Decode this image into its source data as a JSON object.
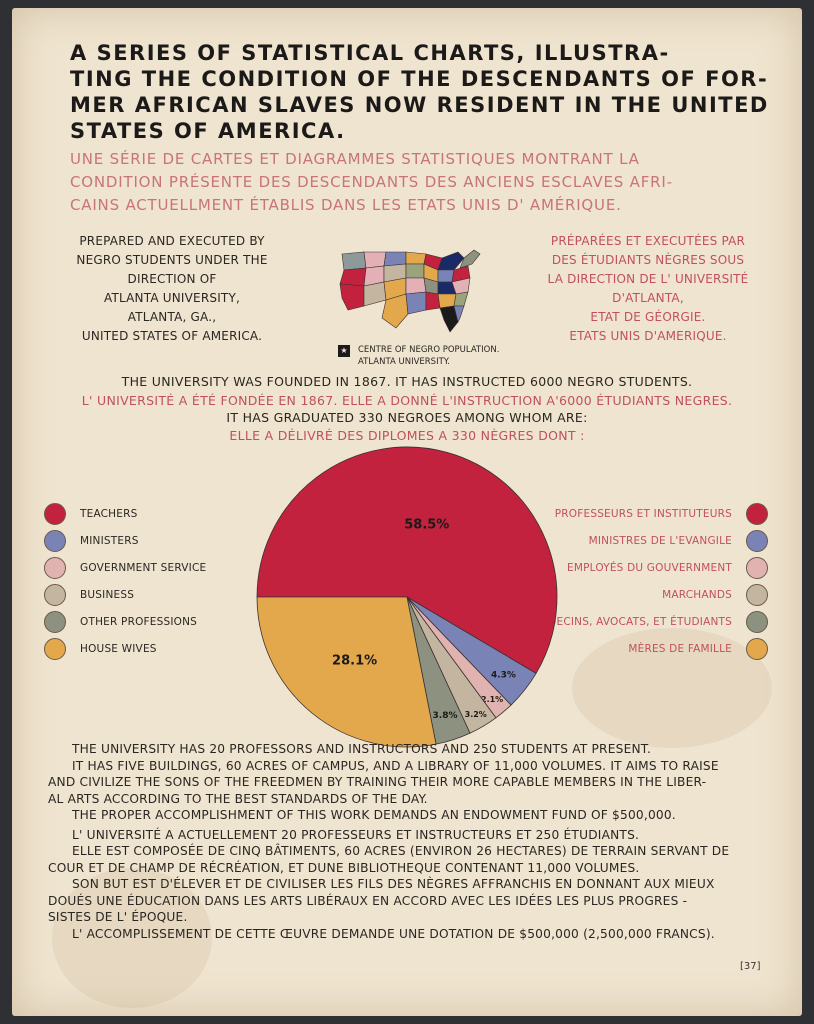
{
  "title": {
    "lines": [
      "A SERIES OF STATISTICAL CHARTS, ILLUSTRA-",
      "TING THE CONDITION OF THE DESCENDANTS OF FOR-",
      "MER AFRICAN SLAVES NOW RESIDENT IN THE UNITED",
      "STATES OF AMERICA."
    ]
  },
  "title_fr": {
    "lines": [
      "UNE SÉRIE DE CARTES ET DIAGRAMMES STATISTIQUES MONTRANT LA",
      "CONDITION PRÉSENTE DES DESCENDANTS DES ANCIENS ESCLAVES AFRI-",
      "CAINS ACTUELLMENT ÉTABLIS DANS LES ETATS UNIS D' AMÉRIQUE."
    ]
  },
  "prepared": {
    "lines": [
      "PREPARED AND EXECUTED BY",
      "NEGRO STUDENTS UNDER THE",
      "DIRECTION OF",
      "ATLANTA UNIVERSITY,",
      "ATLANTA, GA.,",
      "UNITED STATES OF AMERICA."
    ]
  },
  "prepared_fr": {
    "lines": [
      "PRÉPARÉES ET EXECUTÉES PAR",
      "DES ÉTUDIANTS NÈGRES SOUS",
      "LA DIRECTION DE L' UNIVERSITÉ",
      "D'ATLANTA,",
      "ETAT DE GÉORGIE.",
      "ETATS UNIS D'AMERIQUE."
    ]
  },
  "map_note": {
    "line1": "CENTRE OF NEGRO POPULATION.",
    "line2": "ATLANTA UNIVERSITY."
  },
  "intro": {
    "en1": "THE UNIVERSITY WAS FOUNDED IN 1867. IT HAS INSTRUCTED 6000 NEGRO STUDENTS.",
    "fr1": "L' UNIVERSITÉ A ÉTÉ FONDÉE EN 1867. ELLE A DONNÉ L'INSTRUCTION A'6000 ÉTUDIANTS NEGRES.",
    "en2": "IT HAS GRADUATED 330 NEGROES AMONG WHOM ARE:",
    "fr2": "ELLE A DÉLIVRÉ DES DIPLOMES A 330 NÈGRES DONT :"
  },
  "chart_data": {
    "type": "pie",
    "unit": "%",
    "slices": [
      {
        "label": "TEACHERS",
        "label_fr": "PROFESSEURS ET INSTITUTEURS",
        "value": 58.5,
        "data_label": "58.5%",
        "color": "#c3223f"
      },
      {
        "label": "MINISTERS",
        "label_fr": "MINISTRES DE L'EVANGILE",
        "value": 4.3,
        "data_label": "4.3%",
        "color": "#7a83b6"
      },
      {
        "label": "GOVERNMENT SERVICE",
        "label_fr": "EMPLOYÉS DU GOUVERNMENT",
        "value": 2.1,
        "data_label": "2.1%",
        "color": "#e1b3b0"
      },
      {
        "label": "BUSINESS",
        "label_fr": "MARCHANDS",
        "value": 3.2,
        "data_label": "3.2%",
        "color": "#c3b59f"
      },
      {
        "label": "OTHER PROFESSIONS",
        "label_fr": "MEDECINS, AVOCATS, ET ÉTUDIANTS",
        "value": 3.8,
        "data_label": "3.8%",
        "color": "#8c9180"
      },
      {
        "label": "HOUSE WIVES",
        "label_fr": "MÈRES DE FAMILLE",
        "value": 28.1,
        "data_label": "28.1%",
        "color": "#e2a84b"
      }
    ]
  },
  "body_en": {
    "lines": [
      "THE UNIVERSITY HAS 20 PROFESSORS AND INSTRUCTORS AND 250 STUDENTS AT PRESENT.",
      "IT HAS FIVE BUILDINGS, 60 ACRES OF CAMPUS, AND A LIBRARY OF 11,000 VOLUMES. IT AIMS TO RAISE",
      "AND CIVILIZE THE SONS OF THE FREEDMEN BY TRAINING THEIR MORE CAPABLE MEMBERS IN THE LIBER-",
      "AL ARTS ACCORDING TO THE BEST STANDARDS OF THE DAY.",
      "THE PROPER ACCOMPLISHMENT OF THIS WORK DEMANDS AN ENDOWMENT FUND OF $500,000."
    ]
  },
  "body_fr": {
    "lines": [
      "L' UNIVERSITÉ A ACTUELLEMENT 20 PROFESSEURS ET INSTRUCTEURS ET 250 ÉTUDIANTS.",
      "ELLE EST COMPOSÉE DE CINQ BÂTIMENTS, 60 ACRES (ENVIRON 26 HECTARES) DE TERRAIN SERVANT DE",
      "COUR ET DE CHAMP DE RÉCRÉATION, ET DUNE BIBLIOTHEQUE CONTENANT 11,000 VOLUMES.",
      "SON BUT EST D'ÉLEVER ET DE CIVILISER LES FILS DES NÈGRES AFFRANCHIS EN DONNANT AUX MIEUX",
      "DOUÉS UNE ÉDUCATION DANS LES ARTS LIBÉRAUX EN ACCORD AVEC LES IDÉES LES PLUS PROGRES -",
      "SISTES DE L' ÉPOQUE.",
      "L' ACCOMPLISSEMENT DE CETTE ŒUVRE DEMANDE UNE DOTATION DE $500,000 (2,500,000 FRANCS)."
    ]
  },
  "page_number": "[37]"
}
